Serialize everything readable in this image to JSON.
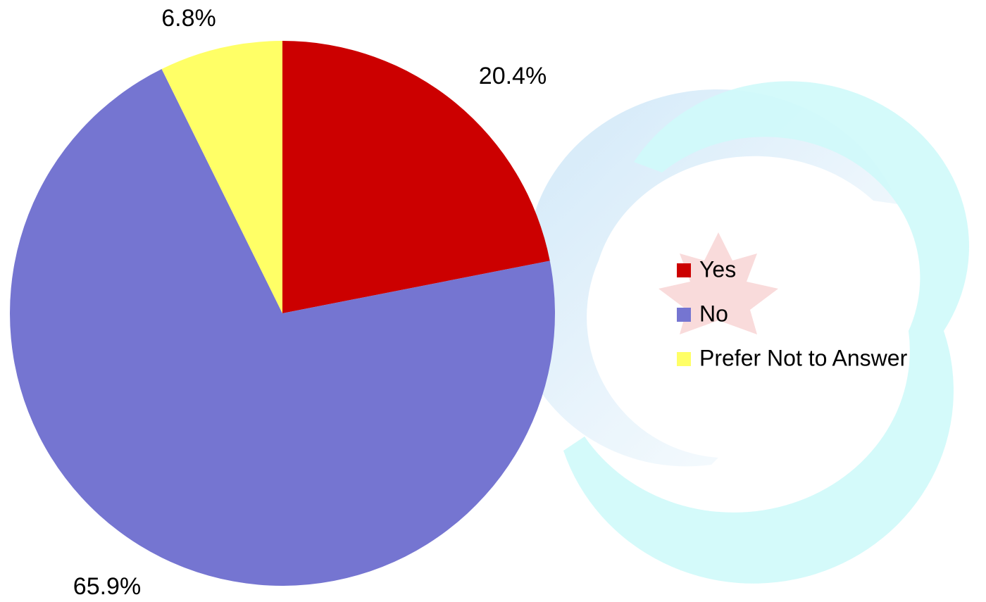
{
  "chart_data": {
    "type": "pie",
    "categories": [
      "Yes",
      "No",
      "Prefer Not to Answer"
    ],
    "values": [
      20.4,
      65.9,
      6.8
    ],
    "value_labels": [
      "20.4%",
      "65.9%",
      "6.8%"
    ],
    "colors": [
      "#cc0000",
      "#7575d1",
      "#ffff66"
    ],
    "legend": "right"
  }
}
